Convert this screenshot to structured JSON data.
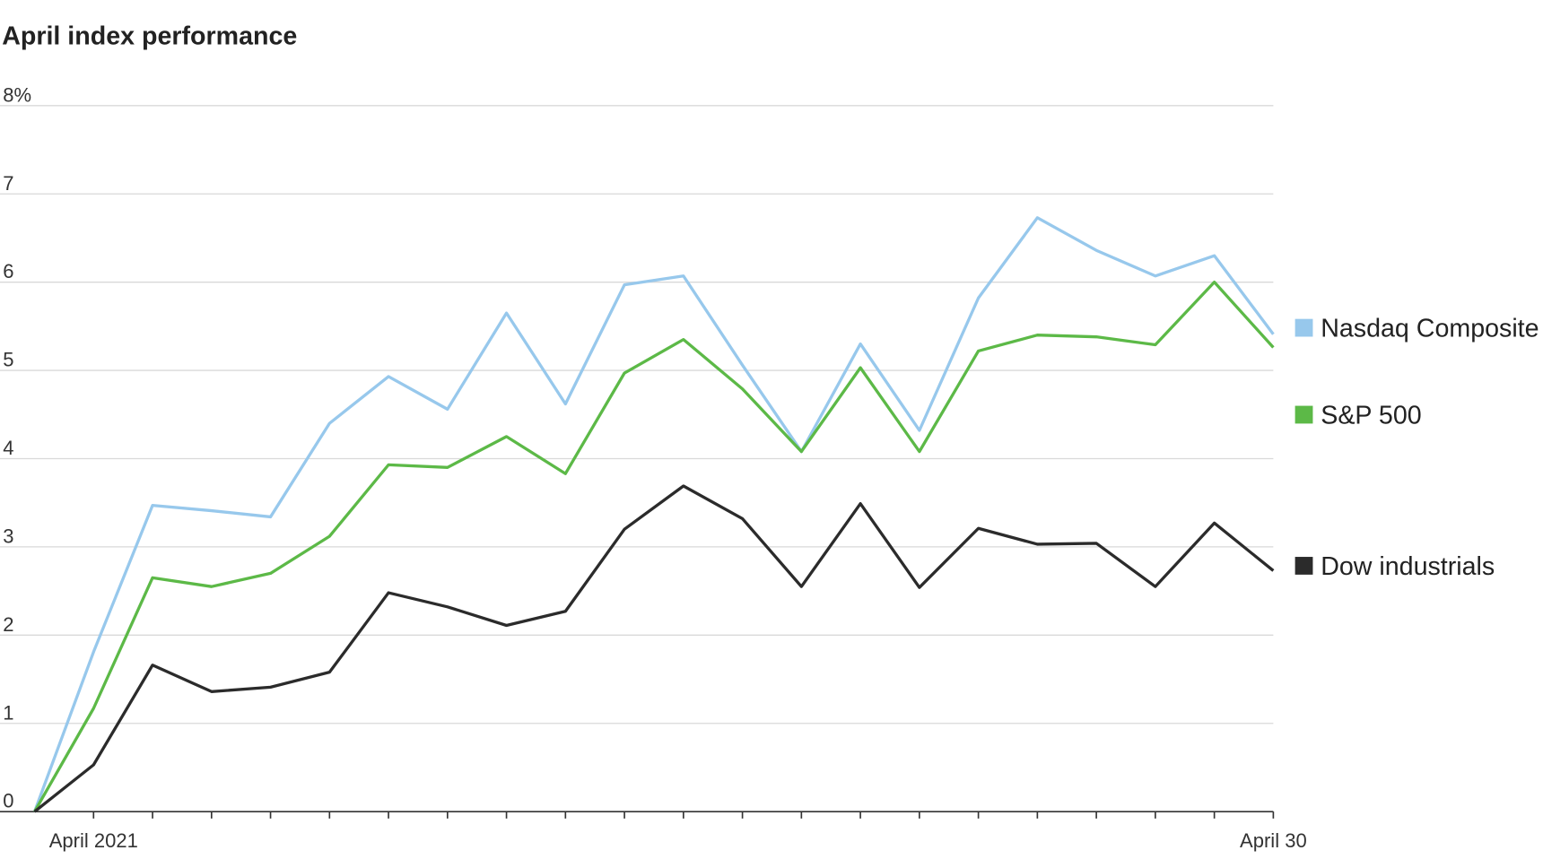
{
  "chart_data": {
    "type": "line",
    "title": "April index performance",
    "categories": [
      null,
      "April 2021",
      null,
      null,
      null,
      null,
      null,
      null,
      null,
      null,
      null,
      null,
      null,
      null,
      null,
      null,
      null,
      null,
      null,
      null,
      null,
      "April 30"
    ],
    "series": [
      {
        "name": "Nasdaq Composite",
        "color": "#97c8ec",
        "values": [
          0,
          1.81,
          3.47,
          3.41,
          3.34,
          4.4,
          4.93,
          4.56,
          5.65,
          4.62,
          5.97,
          6.07,
          5.06,
          4.08,
          5.3,
          4.32,
          5.82,
          6.73,
          6.36,
          6.07,
          6.3,
          5.41
        ]
      },
      {
        "name": "S&P 500",
        "color": "#5cb947",
        "values": [
          0,
          1.17,
          2.65,
          2.55,
          2.7,
          3.12,
          3.93,
          3.9,
          4.25,
          3.83,
          4.97,
          5.35,
          4.79,
          4.08,
          5.03,
          4.08,
          5.22,
          5.4,
          5.38,
          5.29,
          6.0,
          5.26
        ]
      },
      {
        "name": "Dow industrials",
        "color": "#2b2b2b",
        "values": [
          0,
          0.53,
          1.66,
          1.36,
          1.41,
          1.58,
          2.48,
          2.32,
          2.11,
          2.27,
          3.2,
          3.69,
          3.32,
          2.55,
          3.49,
          2.54,
          3.21,
          3.03,
          3.04,
          2.55,
          3.27,
          2.73
        ]
      }
    ],
    "ylim": [
      0,
      8
    ],
    "yticks": [
      0,
      1,
      2,
      3,
      4,
      5,
      6,
      7,
      {
        "value": 8,
        "label": "8%"
      }
    ],
    "grid": true
  }
}
